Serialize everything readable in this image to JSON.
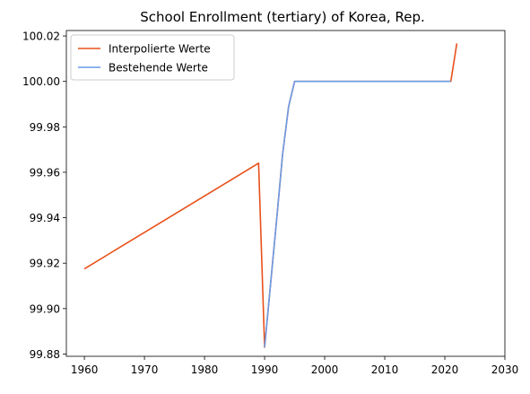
{
  "chart_data": {
    "type": "line",
    "title": "School Enrollment (tertiary) of Korea, Rep.",
    "xlabel": "",
    "ylabel": "",
    "xlim": [
      1957,
      2030
    ],
    "ylim": [
      99.879,
      100.0224
    ],
    "x_ticks": [
      1960,
      1970,
      1980,
      1990,
      2000,
      2010,
      2020,
      2030
    ],
    "y_ticks": [
      99.88,
      99.9,
      99.92,
      99.94,
      99.96,
      99.98,
      100.0,
      100.02
    ],
    "y_tick_labels": [
      "99.88",
      "99.90",
      "99.92",
      "99.94",
      "99.96",
      "99.98",
      "100.00",
      "100.02"
    ],
    "grid": false,
    "legend_position": "top-left",
    "series": [
      {
        "name": "Interpolierte Werte",
        "color": "#e8501a",
        "points": [
          [
            1960,
            99.9175
          ],
          [
            1989,
            99.964
          ],
          [
            1990,
            99.883
          ],
          [
            1991,
            99.911
          ],
          [
            1992,
            99.939
          ],
          [
            1993,
            99.968
          ],
          [
            1994,
            99.989
          ],
          [
            1995,
            100.0
          ],
          [
            2021,
            100.0
          ],
          [
            2022,
            100.0167
          ]
        ]
      },
      {
        "name": "Bestehende Werte",
        "color": "#6a9be8",
        "points": [
          [
            1990,
            99.883
          ],
          [
            1991,
            99.911
          ],
          [
            1992,
            99.939
          ],
          [
            1993,
            99.968
          ],
          [
            1994,
            99.989
          ],
          [
            1995,
            100.0
          ],
          [
            2021,
            100.0
          ]
        ]
      }
    ]
  }
}
